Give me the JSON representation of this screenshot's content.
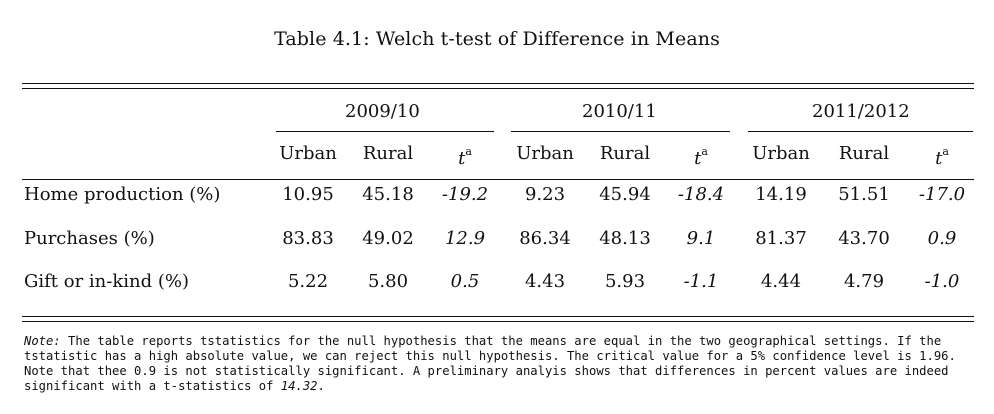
{
  "table": {
    "caption": "Table 4.1: Welch t-test of Difference in Means",
    "groups": [
      {
        "label": "2009/10"
      },
      {
        "label": "2010/11"
      },
      {
        "label": "2011/2012"
      }
    ],
    "subheaders": [
      "Urban",
      "Rural",
      "t",
      "a"
    ],
    "rows": [
      {
        "label": "Home production (%)",
        "values": [
          "10.95",
          "45.18",
          "-19.2",
          "9.23",
          "45.94",
          "-18.4",
          "14.19",
          "51.51",
          "-17.0"
        ]
      },
      {
        "label": "Purchases (%)",
        "values": [
          "83.83",
          "49.02",
          "12.9",
          "86.34",
          "48.13",
          "9.1",
          "81.37",
          "43.70",
          "0.9"
        ]
      },
      {
        "label": "Gift or in-kind (%)",
        "values": [
          "5.22",
          "5.80",
          "0.5",
          "4.43",
          "5.93",
          "-1.1",
          "4.44",
          "4.79",
          "-1.0"
        ]
      }
    ]
  },
  "note": {
    "prefix": "Note:",
    "body": " The table reports tstatistics for the null hypothesis that the means are equal in the two geographical settings. If the tstatistic has a high absolute value, we can reject this null hypothesis. The critical value for a 5% confidence level is 1.96. Note that thee 0.9 is not statistically significant. A preliminary analyis shows that differences in percent values are indeed significant with a t-statistics of ",
    "value": "14.32",
    "suffix": "."
  }
}
